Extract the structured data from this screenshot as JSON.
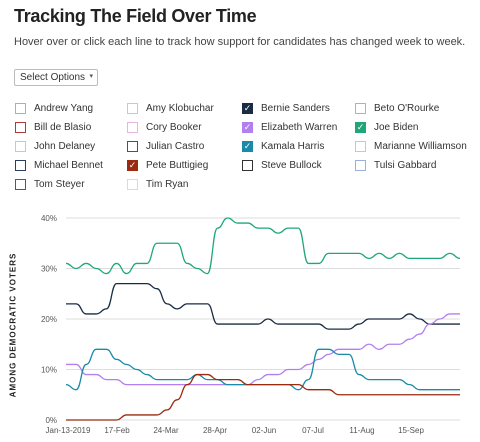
{
  "header": {
    "title": "Tracking The Field Over Time",
    "subtitle": "Hover over or click each line to track how support for candidates has changed week to week."
  },
  "select": {
    "label": "Select Options",
    "caret": "▾"
  },
  "candidates": [
    {
      "name": "Andrew Yang",
      "color": "#5fd3c4",
      "checked": false
    },
    {
      "name": "Amy Klobuchar",
      "color": "#f1b9a8",
      "checked": false
    },
    {
      "name": "Bernie Sanders",
      "color": "#1a2b44",
      "checked": true
    },
    {
      "name": "Beto O'Rourke",
      "color": "#ef9a90",
      "checked": false
    },
    {
      "name": "Bill de Blasio",
      "color": "#b03a3a",
      "checked": false
    },
    {
      "name": "Cory Booker",
      "color": "#e6b4e6",
      "checked": false
    },
    {
      "name": "Elizabeth Warren",
      "color": "#b27ff0",
      "checked": true
    },
    {
      "name": "Joe Biden",
      "color": "#1fa77a",
      "checked": true
    },
    {
      "name": "John Delaney",
      "color": "#8ee0de",
      "checked": false
    },
    {
      "name": "Julian Castro",
      "color": "#8a2a8a",
      "checked": false
    },
    {
      "name": "Kamala Harris",
      "color": "#1a8aa8",
      "checked": true
    },
    {
      "name": "Marianne Williamson",
      "color": "#f2c46e",
      "checked": false
    },
    {
      "name": "Michael Bennet",
      "color": "#2b3f5c",
      "checked": false
    },
    {
      "name": "Pete Buttigieg",
      "color": "#9a2a10",
      "checked": true
    },
    {
      "name": "Steve Bullock",
      "color": "#333333",
      "checked": false
    },
    {
      "name": "Tulsi Gabbard",
      "color": "#9ab0d8",
      "checked": false
    },
    {
      "name": "Tom Steyer",
      "color": "#2a6c74",
      "checked": false
    },
    {
      "name": "Tim Ryan",
      "color": "#f2e07a",
      "checked": false
    }
  ],
  "chart_data": {
    "type": "line",
    "ylabel": "AMONG DEMOCRATIC VOTERS",
    "ylim": [
      0,
      40
    ],
    "yticks": [
      0,
      10,
      20,
      30,
      40
    ],
    "ytick_labels": [
      "0%",
      "10%",
      "20%",
      "30%",
      "40%"
    ],
    "grid": true,
    "xticks": [
      "Jan-13-2019",
      "17-Feb",
      "24-Mar",
      "28-Apr",
      "02-Jun",
      "07-Jul",
      "11-Aug",
      "15-Sep"
    ],
    "x": [
      0,
      0.5,
      1,
      1.5,
      2,
      2.5,
      3,
      3.5,
      4,
      4.5,
      5,
      5.5,
      6,
      6.5,
      7,
      7.5,
      8,
      8.5,
      9,
      9.5,
      10,
      10.5,
      11,
      11.5,
      12,
      12.5,
      13,
      13.5,
      14,
      14.5,
      15,
      15.5,
      16,
      16.5,
      17,
      17.5,
      18,
      18.5,
      19,
      19.5
    ],
    "series": [
      {
        "name": "Joe Biden",
        "color": "#1fa77a",
        "values": [
          31,
          30,
          31,
          30,
          29,
          31,
          29,
          31,
          31,
          35,
          35,
          35,
          31,
          30,
          29,
          38,
          40,
          39,
          39,
          38,
          38,
          37,
          38,
          38,
          31,
          31,
          33,
          33,
          33,
          33,
          32,
          33,
          32,
          33,
          32,
          32,
          32,
          32,
          33,
          32
        ]
      },
      {
        "name": "Bernie Sanders",
        "color": "#1a2b44",
        "values": [
          23,
          23,
          21,
          21,
          22,
          27,
          27,
          27,
          27,
          26,
          23,
          22,
          23,
          23,
          23,
          19,
          19,
          19,
          19,
          19,
          20,
          19,
          19,
          19,
          19,
          19,
          18,
          18,
          18,
          19,
          20,
          20,
          20,
          20,
          21,
          20,
          19,
          19,
          19,
          19
        ]
      },
      {
        "name": "Elizabeth Warren",
        "color": "#b27ff0",
        "values": [
          11,
          11,
          9,
          9,
          8,
          8,
          7,
          7,
          7,
          7,
          7,
          7,
          7,
          7,
          7,
          7,
          7,
          7,
          7,
          8,
          9,
          9,
          10,
          10,
          11,
          12,
          13,
          14,
          14,
          14,
          15,
          14,
          15,
          15,
          16,
          17,
          19,
          20,
          21,
          21
        ]
      },
      {
        "name": "Kamala Harris",
        "color": "#1a8aa8",
        "values": [
          7,
          6,
          11,
          14,
          14,
          12,
          11,
          10,
          9,
          8,
          8,
          8,
          8,
          9,
          8,
          8,
          7,
          7,
          7,
          7,
          7,
          7,
          7,
          6,
          8,
          14,
          14,
          13,
          13,
          9,
          8,
          8,
          8,
          8,
          7,
          6,
          6,
          6,
          6,
          6
        ]
      },
      {
        "name": "Pete Buttigieg",
        "color": "#9a2a10",
        "values": [
          0,
          0,
          0,
          0,
          0,
          0,
          1,
          1,
          1,
          1,
          2,
          4,
          7,
          9,
          9,
          8,
          8,
          8,
          7,
          7,
          7,
          7,
          7,
          7,
          6,
          6,
          6,
          5,
          5,
          5,
          5,
          5,
          5,
          5,
          5,
          5,
          5,
          5,
          5,
          5
        ]
      }
    ]
  }
}
